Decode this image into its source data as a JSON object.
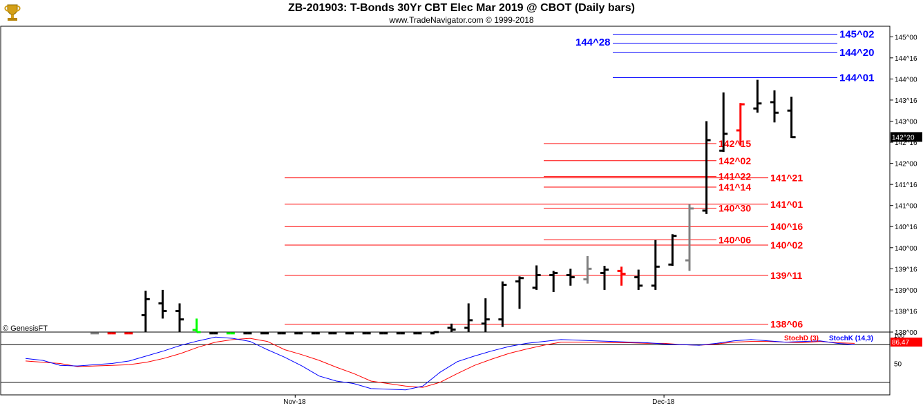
{
  "header": {
    "title": "ZB-201903:  T-Bonds 30Yr CBT Elec Mar 2019 @ CBOT  (Daily bars)",
    "subtitle": "www.TradeNavigator.com © 1999-2018",
    "logo_icon": "trophy-logo-icon"
  },
  "footer": {
    "credit": "© GenesisFT"
  },
  "colors": {
    "bar": "#000000",
    "bar_red": "#ff0000",
    "bar_gray": "#808080",
    "bar_green": "#00ff00",
    "level_blue": "#0000ff",
    "level_red": "#ff0000",
    "stoch_d": "#ff0000",
    "stoch_k": "#0000ff"
  },
  "chart_data": [
    {
      "type": "ohlc",
      "title": "ZB-201903:  T-Bonds 30Yr CBT Elec Mar 2019 @ CBOT  (Daily bars)",
      "price_unit": "points and 32nds",
      "ylim": [
        138,
        145.25
      ],
      "y_ticks": [
        "138^00",
        "138^16",
        "139^00",
        "139^16",
        "140^00",
        "140^16",
        "141^00",
        "141^16",
        "142^00",
        "142^16",
        "143^00",
        "143^16",
        "144^00",
        "144^16",
        "145^00"
      ],
      "x_labels": [
        {
          "label": "Nov-18",
          "index": 11.8
        },
        {
          "label": "Dec-18",
          "index": 33.5
        }
      ],
      "last_price_label": "142^20",
      "bars": [
        {
          "o": 137.97,
          "h": 138.0,
          "l": 137.97,
          "c": 137.97,
          "color": "gray"
        },
        {
          "o": 137.97,
          "h": 138.0,
          "l": 137.97,
          "c": 137.97,
          "color": "red"
        },
        {
          "o": 137.97,
          "h": 138.0,
          "l": 137.97,
          "c": 137.97,
          "color": "red"
        },
        {
          "o": 138.4,
          "h": 138.98,
          "l": 137.97,
          "c": 138.78,
          "color": "black"
        },
        {
          "o": 138.68,
          "h": 139.0,
          "l": 138.32,
          "c": 138.5,
          "color": "black"
        },
        {
          "o": 138.5,
          "h": 138.68,
          "l": 138.0,
          "c": 138.3,
          "color": "black"
        },
        {
          "o": 138.05,
          "h": 138.32,
          "l": 137.97,
          "c": 138.0,
          "color": "green"
        },
        {
          "o": 137.97,
          "h": 138.0,
          "l": 137.97,
          "c": 137.97,
          "color": "black"
        },
        {
          "o": 137.97,
          "h": 138.0,
          "l": 137.97,
          "c": 137.97,
          "color": "green"
        },
        {
          "o": 137.97,
          "h": 138.0,
          "l": 137.97,
          "c": 137.97,
          "color": "black"
        },
        {
          "o": 137.97,
          "h": 138.0,
          "l": 137.97,
          "c": 137.97,
          "color": "black"
        },
        {
          "o": 137.97,
          "h": 138.0,
          "l": 137.97,
          "c": 137.97,
          "color": "black"
        },
        {
          "o": 137.97,
          "h": 138.0,
          "l": 137.97,
          "c": 137.97,
          "color": "black"
        },
        {
          "o": 137.97,
          "h": 138.0,
          "l": 137.97,
          "c": 137.97,
          "color": "black"
        },
        {
          "o": 137.97,
          "h": 138.0,
          "l": 137.97,
          "c": 137.97,
          "color": "black"
        },
        {
          "o": 137.97,
          "h": 138.0,
          "l": 137.97,
          "c": 137.97,
          "color": "black"
        },
        {
          "o": 137.97,
          "h": 138.0,
          "l": 137.97,
          "c": 137.97,
          "color": "black"
        },
        {
          "o": 137.97,
          "h": 138.0,
          "l": 137.97,
          "c": 137.97,
          "color": "black"
        },
        {
          "o": 137.97,
          "h": 138.0,
          "l": 137.97,
          "c": 137.97,
          "color": "black"
        },
        {
          "o": 137.97,
          "h": 138.0,
          "l": 137.97,
          "c": 137.97,
          "color": "black"
        },
        {
          "o": 137.97,
          "h": 138.02,
          "l": 137.97,
          "c": 138.0,
          "color": "black"
        },
        {
          "o": 138.1,
          "h": 138.2,
          "l": 137.97,
          "c": 138.06,
          "color": "black"
        },
        {
          "o": 138.1,
          "h": 138.68,
          "l": 137.97,
          "c": 138.28,
          "color": "black"
        },
        {
          "o": 138.2,
          "h": 138.8,
          "l": 137.97,
          "c": 138.3,
          "color": "black"
        },
        {
          "o": 138.3,
          "h": 139.2,
          "l": 138.12,
          "c": 139.12,
          "color": "black"
        },
        {
          "o": 139.2,
          "h": 139.32,
          "l": 138.55,
          "c": 139.28,
          "color": "black"
        },
        {
          "o": 139.05,
          "h": 139.58,
          "l": 139.0,
          "c": 139.35,
          "color": "black"
        },
        {
          "o": 139.35,
          "h": 139.45,
          "l": 138.95,
          "c": 139.4,
          "color": "black"
        },
        {
          "o": 139.35,
          "h": 139.5,
          "l": 139.1,
          "c": 139.3,
          "color": "black"
        },
        {
          "o": 139.25,
          "h": 139.8,
          "l": 139.15,
          "c": 139.5,
          "color": "gray"
        },
        {
          "o": 139.4,
          "h": 139.57,
          "l": 139.0,
          "c": 139.48,
          "color": "black"
        },
        {
          "o": 139.45,
          "h": 139.55,
          "l": 139.1,
          "c": 139.38,
          "color": "red"
        },
        {
          "o": 139.3,
          "h": 139.48,
          "l": 139.0,
          "c": 139.1,
          "color": "black"
        },
        {
          "o": 139.1,
          "h": 140.18,
          "l": 139.0,
          "c": 139.55,
          "color": "black"
        },
        {
          "o": 139.6,
          "h": 140.32,
          "l": 139.57,
          "c": 140.28,
          "color": "black"
        },
        {
          "o": 139.7,
          "h": 141.03,
          "l": 139.45,
          "c": 140.93,
          "color": "gray"
        },
        {
          "o": 140.88,
          "h": 143.0,
          "l": 140.8,
          "c": 142.55,
          "color": "black"
        },
        {
          "o": 142.3,
          "h": 143.68,
          "l": 142.27,
          "c": 142.7,
          "color": "black"
        },
        {
          "o": 142.78,
          "h": 143.43,
          "l": 142.42,
          "c": 143.4,
          "color": "red"
        },
        {
          "o": 143.3,
          "h": 143.98,
          "l": 143.2,
          "c": 143.42,
          "color": "black"
        },
        {
          "o": 143.45,
          "h": 143.73,
          "l": 142.97,
          "c": 143.2,
          "color": "black"
        },
        {
          "o": 143.25,
          "h": 143.58,
          "l": 142.6,
          "c": 142.62,
          "color": "black"
        }
      ],
      "levels_blue": [
        {
          "label": "145^02",
          "price": 145.0625
        },
        {
          "label": "144^20",
          "price": 144.625
        },
        {
          "label": "144^01",
          "price": 144.03125
        }
      ],
      "extra_blue_lines": [
        {
          "price": 144.85
        }
      ],
      "blue_annotation": {
        "label": "144^28",
        "price": 144.875
      },
      "levels_red_left": [
        {
          "label": "142^15",
          "price": 142.46875
        },
        {
          "label": "142^02",
          "price": 142.0625
        },
        {
          "label": "141^22",
          "price": 141.6875
        },
        {
          "label": "141^14",
          "price": 141.4375
        },
        {
          "label": "140^30",
          "price": 140.9375
        },
        {
          "label": "140^06",
          "price": 140.1875
        }
      ],
      "levels_red_right": [
        {
          "label": "141^21",
          "price": 141.65625
        },
        {
          "label": "141^01",
          "price": 141.03125
        },
        {
          "label": "140^16",
          "price": 140.5
        },
        {
          "label": "140^02",
          "price": 140.0625
        },
        {
          "label": "139^11",
          "price": 139.34375
        },
        {
          "label": "138^06",
          "price": 138.1875
        }
      ]
    },
    {
      "type": "line",
      "ylim": [
        0,
        100
      ],
      "y_ticks": [
        "50"
      ],
      "overbought_line": 80,
      "oversold_line": 20,
      "top_label": "100",
      "value_label": "86.47",
      "legend": [
        "StochD (3)",
        "StochK (14,3)"
      ],
      "series": [
        {
          "name": "StochD (3)",
          "color": "red",
          "values": [
            54,
            52,
            50,
            45,
            46,
            47,
            48,
            52,
            58,
            66,
            76,
            84,
            88,
            90,
            85,
            72,
            64,
            55,
            44,
            34,
            22,
            18,
            14,
            12,
            20,
            34,
            47,
            57,
            66,
            73,
            79,
            84,
            84,
            84,
            83,
            83,
            82,
            82,
            80,
            79,
            81,
            84,
            85,
            85,
            84,
            83,
            85,
            83,
            82
          ]
        },
        {
          "name": "StochK (14,3)",
          "color": "blue",
          "values": [
            58,
            55,
            47,
            46,
            48,
            50,
            54,
            62,
            70,
            79,
            86,
            92,
            90,
            85,
            72,
            60,
            46,
            30,
            22,
            18,
            10,
            9,
            8,
            14,
            36,
            53,
            62,
            70,
            77,
            82,
            85,
            88,
            87,
            86,
            85,
            84,
            83,
            81,
            80,
            79,
            82,
            86,
            88,
            86,
            84,
            85,
            86,
            82,
            80
          ]
        }
      ]
    }
  ]
}
